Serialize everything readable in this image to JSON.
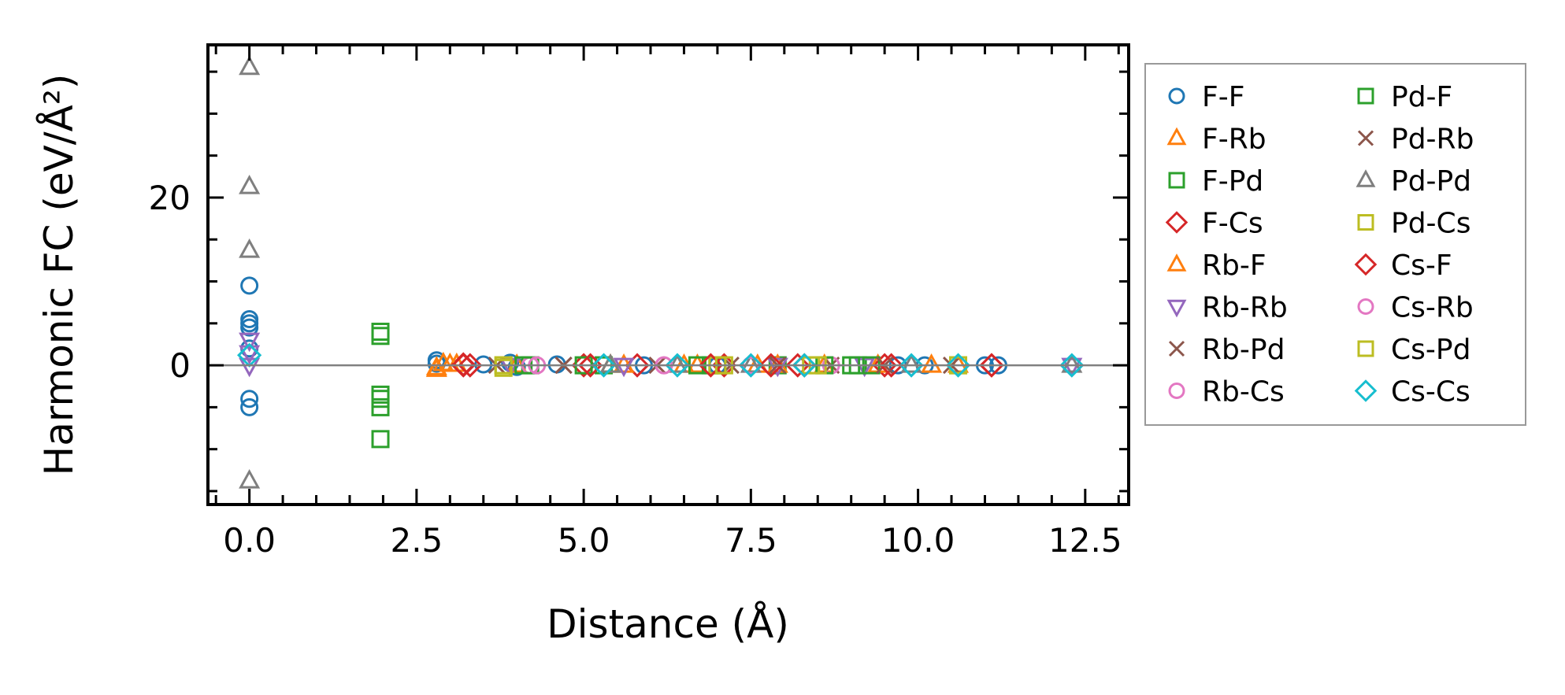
{
  "chart_data": {
    "type": "scatter",
    "title": "",
    "xlabel": "Distance (Å)",
    "ylabel": "Harmonic FC (eV/Å²)",
    "xlim": [
      -0.62,
      13.15
    ],
    "ylim": [
      -16.6,
      38.2
    ],
    "xticks": [
      0.0,
      2.5,
      5.0,
      7.5,
      10.0,
      12.5
    ],
    "xtick_labels": [
      "0.0",
      "2.5",
      "5.0",
      "7.5",
      "10.0",
      "12.5"
    ],
    "yticks": [
      0,
      20
    ],
    "ytick_labels": [
      "0",
      "20"
    ],
    "grid": false,
    "legend_position": "outside-right",
    "hline": 0,
    "series": [
      {
        "name": "F-F",
        "color": "#1f77b4",
        "marker": "circle",
        "x": [
          0,
          0,
          0,
          0,
          0,
          0,
          0,
          2.8,
          2.8,
          3.5,
          3.9,
          4.0,
          4.6,
          5.9,
          7.0,
          9.7,
          10.1,
          11.0,
          11.2
        ],
        "y": [
          9.5,
          5.5,
          5.0,
          4.5,
          2.0,
          -4.0,
          -5.0,
          0.6,
          0.2,
          0.1,
          0.3,
          -0.2,
          0.1,
          0.0,
          0.0,
          0.0,
          0.0,
          0.0,
          0.0
        ]
      },
      {
        "name": "F-Rb",
        "color": "#ff7f0e",
        "marker": "triangle-up",
        "x": [
          2.8,
          2.9,
          3.1,
          4.0,
          5.4,
          6.7,
          7.6,
          8.6,
          10.2,
          10.6
        ],
        "y": [
          -0.5,
          0.2,
          0.1,
          0.0,
          0.0,
          0.0,
          0.0,
          0.0,
          0.0,
          0.0
        ]
      },
      {
        "name": "F-Pd",
        "color": "#2ca02c",
        "marker": "square",
        "x": [
          4.2,
          5.3,
          6.9,
          7.9,
          9.1
        ],
        "y": [
          0.0,
          0.0,
          0.0,
          0.0,
          0.0
        ]
      },
      {
        "name": "F-Cs",
        "color": "#d62728",
        "marker": "diamond",
        "x": [
          3.2,
          3.3,
          5.0,
          5.8,
          7.1,
          8.3,
          9.5,
          11.1
        ],
        "y": [
          0.1,
          0.0,
          0.0,
          0.0,
          0.0,
          0.0,
          0.0,
          0.0
        ]
      },
      {
        "name": "Rb-F",
        "color": "#ff7f0e",
        "marker": "triangle-up",
        "x": [
          2.8,
          3.0,
          5.6,
          6.5,
          7.9,
          9.4
        ],
        "y": [
          -0.3,
          0.1,
          0.0,
          0.0,
          0.0,
          0.0
        ]
      },
      {
        "name": "Rb-Rb",
        "color": "#9467bd",
        "marker": "triangle-down",
        "x": [
          0,
          0,
          0,
          3.9,
          5.6,
          7.9,
          9.2,
          12.3
        ],
        "y": [
          3.0,
          1.5,
          0.0,
          0.0,
          0.0,
          0.0,
          0.0,
          0.0
        ]
      },
      {
        "name": "Rb-Pd",
        "color": "#8c564b",
        "marker": "x",
        "x": [
          3.7,
          4.7,
          7.2,
          8.7
        ],
        "y": [
          0.0,
          0.0,
          0.0,
          0.0
        ]
      },
      {
        "name": "Rb-Cs",
        "color": "#e377c2",
        "marker": "circle",
        "x": [
          4.2,
          6.2,
          8.7
        ],
        "y": [
          0.0,
          0.0,
          0.0
        ]
      },
      {
        "name": "Pd-F",
        "color": "#2ca02c",
        "marker": "square",
        "x": [
          1.96,
          1.96,
          1.96,
          1.96,
          1.96,
          1.96,
          4.1,
          5.0,
          6.7,
          7.0,
          8.6,
          9.0,
          9.3
        ],
        "y": [
          4.0,
          3.5,
          -3.5,
          -4.0,
          -5.0,
          -8.8,
          0.0,
          0.0,
          0.0,
          0.0,
          0.0,
          0.0,
          0.0
        ]
      },
      {
        "name": "Pd-Rb",
        "color": "#8c564b",
        "marker": "x",
        "x": [
          4.7,
          6.1,
          7.9,
          9.5,
          10.5
        ],
        "y": [
          0.0,
          0.0,
          0.0,
          0.0,
          0.0
        ]
      },
      {
        "name": "Pd-Pd",
        "color": "#7f7f7f",
        "marker": "triangle-up",
        "x": [
          0,
          0,
          0,
          0,
          5.4,
          6.4,
          7.5,
          9.9,
          12.3
        ],
        "y": [
          35.5,
          21.3,
          13.7,
          -13.8,
          0.0,
          0.0,
          0.0,
          0.0,
          0.0
        ]
      },
      {
        "name": "Pd-Cs",
        "color": "#bcbd22",
        "marker": "square",
        "x": [
          3.8,
          3.8,
          7.0,
          8.5,
          10.6
        ],
        "y": [
          0.0,
          -0.3,
          0.0,
          0.0,
          0.0
        ]
      },
      {
        "name": "Cs-F",
        "color": "#d62728",
        "marker": "diamond",
        "x": [
          3.2,
          5.1,
          6.9,
          7.8,
          8.2,
          9.6,
          11.1
        ],
        "y": [
          0.0,
          0.0,
          0.0,
          0.0,
          0.0,
          0.0,
          0.0
        ]
      },
      {
        "name": "Cs-Rb",
        "color": "#e377c2",
        "marker": "circle",
        "x": [
          4.3,
          6.2,
          7.5
        ],
        "y": [
          0.0,
          0.0,
          0.0
        ]
      },
      {
        "name": "Cs-Pd",
        "color": "#bcbd22",
        "marker": "square",
        "x": [
          3.8,
          7.1,
          8.4,
          10.6
        ],
        "y": [
          0.0,
          0.0,
          0.0,
          0.0
        ]
      },
      {
        "name": "Cs-Cs",
        "color": "#17becf",
        "marker": "diamond",
        "x": [
          0,
          5.3,
          6.4,
          7.5,
          8.3,
          9.9,
          10.6,
          12.3
        ],
        "y": [
          1.2,
          0.0,
          0.0,
          0.0,
          0.0,
          0.0,
          0.0,
          0.0
        ]
      }
    ]
  }
}
